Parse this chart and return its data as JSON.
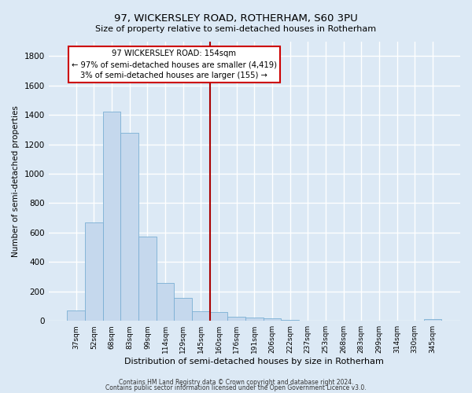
{
  "title": "97, WICKERSLEY ROAD, ROTHERHAM, S60 3PU",
  "subtitle": "Size of property relative to semi-detached houses in Rotherham",
  "xlabel": "Distribution of semi-detached houses by size in Rotherham",
  "ylabel": "Number of semi-detached properties",
  "bar_labels": [
    "37sqm",
    "52sqm",
    "68sqm",
    "83sqm",
    "99sqm",
    "114sqm",
    "129sqm",
    "145sqm",
    "160sqm",
    "176sqm",
    "191sqm",
    "206sqm",
    "222sqm",
    "237sqm",
    "253sqm",
    "268sqm",
    "283sqm",
    "299sqm",
    "314sqm",
    "330sqm",
    "345sqm"
  ],
  "bar_values": [
    70,
    670,
    1420,
    1280,
    575,
    255,
    155,
    65,
    60,
    30,
    20,
    15,
    5,
    3,
    2,
    1,
    0,
    0,
    0,
    0,
    10
  ],
  "bar_color": "#c5d8ed",
  "bar_edgecolor": "#7aafd4",
  "background_color": "#dce9f5",
  "grid_color": "#ffffff",
  "vline_x": 7.5,
  "vline_color": "#aa0000",
  "ylim": [
    0,
    1900
  ],
  "yticks": [
    0,
    200,
    400,
    600,
    800,
    1000,
    1200,
    1400,
    1600,
    1800
  ],
  "annotation_title": "97 WICKERSLEY ROAD: 154sqm",
  "annotation_line1": "← 97% of semi-detached houses are smaller (4,419)",
  "annotation_line2": "3% of semi-detached houses are larger (155) →",
  "annotation_box_color": "#ffffff",
  "annotation_box_edgecolor": "#cc0000",
  "footer1": "Contains HM Land Registry data © Crown copyright and database right 2024.",
  "footer2": "Contains public sector information licensed under the Open Government Licence v3.0."
}
